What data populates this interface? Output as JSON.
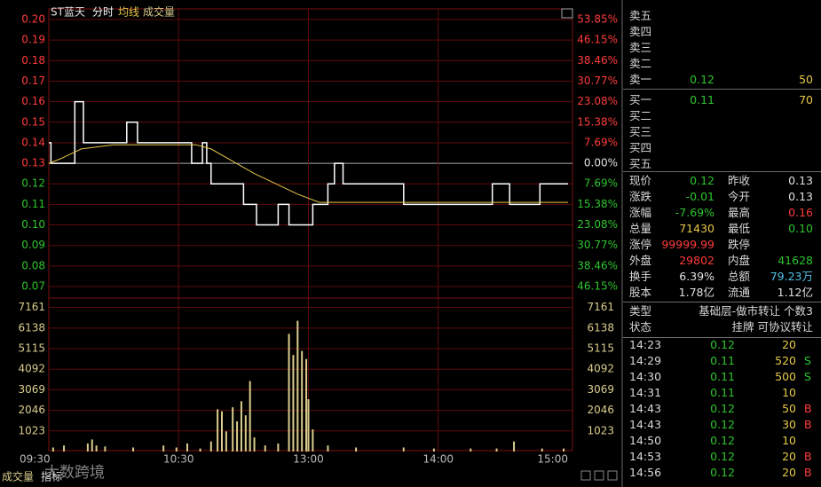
{
  "header": {
    "stock": "ST蓝天"
  },
  "chart_data": [
    {
      "type": "line",
      "series": [
        {
          "name": "分时",
          "color": "#ffffff",
          "x": [
            0,
            1,
            1,
            12,
            12,
            16,
            16,
            36,
            36,
            41,
            41,
            66,
            66,
            71,
            71,
            73,
            73,
            75,
            75,
            90,
            90,
            96,
            96,
            106,
            106,
            111,
            111,
            122,
            122,
            129,
            129,
            132,
            132,
            136,
            136,
            164,
            164,
            205,
            205,
            213,
            213,
            227,
            227,
            240
          ],
          "values": [
            0.14,
            0.14,
            0.13,
            0.13,
            0.16,
            0.16,
            0.14,
            0.14,
            0.15,
            0.15,
            0.14,
            0.14,
            0.13,
            0.13,
            0.14,
            0.14,
            0.13,
            0.13,
            0.12,
            0.12,
            0.11,
            0.11,
            0.1,
            0.1,
            0.11,
            0.11,
            0.1,
            0.1,
            0.11,
            0.11,
            0.12,
            0.12,
            0.13,
            0.13,
            0.12,
            0.12,
            0.11,
            0.11,
            0.12,
            0.12,
            0.11,
            0.11,
            0.12,
            0.12
          ]
        },
        {
          "name": "均线",
          "color": "#e8c84a",
          "x": [
            0,
            5,
            15,
            30,
            68,
            75,
            85,
            95,
            105,
            115,
            125,
            240
          ],
          "values": [
            0.13,
            0.132,
            0.137,
            0.139,
            0.139,
            0.137,
            0.131,
            0.125,
            0.12,
            0.115,
            0.111,
            0.111
          ]
        }
      ],
      "xlim": [
        0,
        240
      ],
      "ylim": [
        0.07,
        0.2
      ],
      "yticks": [
        {
          "value": 0.2,
          "label": "0.20"
        },
        0.19,
        0.18,
        0.17,
        0.16,
        0.15,
        0.14,
        0.13,
        0.12,
        0.11,
        {
          "value": 0.1,
          "label": "0.10"
        },
        0.09,
        0.08,
        0.07
      ],
      "y2lim": [
        -46.15,
        53.85
      ],
      "y2ticks": [
        {
          "value": 53.85,
          "label": "53.85%"
        },
        {
          "value": 46.15,
          "label": "46.15%"
        },
        {
          "value": 38.46,
          "label": "38.46%"
        },
        {
          "value": 30.77,
          "label": "30.77%"
        },
        {
          "value": 23.08,
          "label": "23.08%"
        },
        {
          "value": 15.38,
          "label": "15.38%"
        },
        {
          "value": 7.69,
          "label": "7.69%"
        },
        {
          "value": 0,
          "label": "0.00%"
        },
        {
          "value": -7.69,
          "label": "7.69%"
        },
        {
          "value": -15.38,
          "label": "15.38%"
        },
        {
          "value": -23.08,
          "label": "23.08%"
        },
        {
          "value": -30.77,
          "label": "30.77%"
        },
        {
          "value": -38.46,
          "label": "38.46%"
        },
        {
          "value": -46.15,
          "label": "46.15%"
        }
      ],
      "grid": true
    },
    {
      "type": "bar",
      "x": [
        2,
        7,
        18,
        20,
        22,
        26,
        39,
        53,
        59,
        64,
        70,
        75,
        78,
        80,
        82,
        85,
        87,
        89,
        91,
        93,
        95,
        100,
        106,
        111,
        113,
        115,
        117,
        119,
        120,
        122,
        129,
        142,
        164,
        178,
        195,
        207,
        215,
        228,
        238
      ],
      "series": [
        {
          "name": "成交量",
          "color": "#d9cc8c",
          "values": [
            200,
            300,
            400,
            600,
            300,
            250,
            200,
            300,
            200,
            400,
            150,
            500,
            2100,
            2000,
            1000,
            2200,
            1500,
            2500,
            1800,
            3500,
            700,
            300,
            400,
            5850,
            4800,
            6500,
            5000,
            4600,
            2600,
            1100,
            300,
            200,
            200,
            150,
            150,
            150,
            500,
            150,
            150
          ]
        }
      ],
      "xlim": [
        0,
        240
      ],
      "xticks": [
        {
          "value": 0,
          "label": "09:30"
        },
        {
          "value": 60,
          "label": "10:30"
        },
        {
          "value": 120,
          "label": "13:00"
        },
        {
          "value": 180,
          "label": "14:00"
        },
        {
          "value": 240,
          "label": "15:00"
        }
      ],
      "ylim": [
        0,
        7630
      ],
      "yticks": [
        1023,
        2046,
        3069,
        4092,
        5115,
        6138,
        7161
      ],
      "grid": true
    }
  ],
  "footer_tabs": [
    "指标"
  ],
  "watermark": "大数跨境",
  "order_book": [
    {
      "label": "卖五"
    },
    {
      "label": "卖四"
    },
    {
      "label": "卖三"
    },
    {
      "label": "卖二"
    },
    {
      "label": "卖一",
      "price": 0.12,
      "volume": 50
    },
    {
      "label": "买一",
      "price": 0.11,
      "volume": 70
    },
    {
      "label": "买二"
    },
    {
      "label": "买三"
    },
    {
      "label": "买四"
    },
    {
      "label": "买五"
    }
  ],
  "stats": [
    {
      "label": "现价",
      "value": "0.12",
      "color": "#2ec42e"
    },
    {
      "label": "昨收",
      "value": "0.13",
      "color": "#e0e0e0"
    },
    {
      "label": "涨跌",
      "value": "-0.01",
      "color": "#2ec42e"
    },
    {
      "label": "今开",
      "value": "0.13",
      "color": "#e0e0e0"
    },
    {
      "label": "涨幅",
      "value": "-7.69%",
      "color": "#2ec42e"
    },
    {
      "label": "最高",
      "value": "0.16",
      "color": "#ff3b3b"
    },
    {
      "label": "总量",
      "value": "71430",
      "color": "#e8c84a"
    },
    {
      "label": "最低",
      "value": "0.10",
      "color": "#2ec42e"
    },
    {
      "label": "涨停",
      "value": "99999.99",
      "color": "#ff3b3b"
    },
    {
      "label": "跌停"
    },
    {
      "label": "外盘",
      "value": "29802",
      "color": "#ff3b3b"
    },
    {
      "label": "内盘",
      "value": "41628",
      "color": "#2ec42e"
    },
    {
      "label": "换手",
      "value": "6.39%",
      "color": "#e0e0e0"
    },
    {
      "label": "总额",
      "value": "79.23万",
      "color": "#4fc3e8"
    },
    {
      "label": "股本",
      "value": "1.78亿",
      "color": "#e0e0e0"
    },
    {
      "label": "流通",
      "value": "1.12亿",
      "color": "#e0e0e0"
    }
  ],
  "info": [
    {
      "label": "类型",
      "value": "基础层-做市转让 个数3"
    },
    {
      "label": "状态",
      "value": "挂牌 可协议转让"
    }
  ],
  "trades": [
    {
      "time": "14:23",
      "price": 0.12,
      "volume": 20
    },
    {
      "time": "14:29",
      "price": 0.11,
      "volume": 520,
      "side": "S"
    },
    {
      "time": "14:30",
      "price": 0.11,
      "volume": 500,
      "side": "S"
    },
    {
      "time": "14:31",
      "price": 0.11,
      "volume": 10
    },
    {
      "time": "14:43",
      "price": 0.12,
      "volume": 50,
      "side": "B"
    },
    {
      "time": "14:43",
      "price": 0.12,
      "volume": 30,
      "side": "B"
    },
    {
      "time": "14:50",
      "price": 0.12,
      "volume": 10
    },
    {
      "time": "14:53",
      "price": 0.12,
      "volume": 20,
      "side": "B"
    },
    {
      "time": "14:56",
      "price": 0.12,
      "volume": 20,
      "side": "B"
    }
  ]
}
